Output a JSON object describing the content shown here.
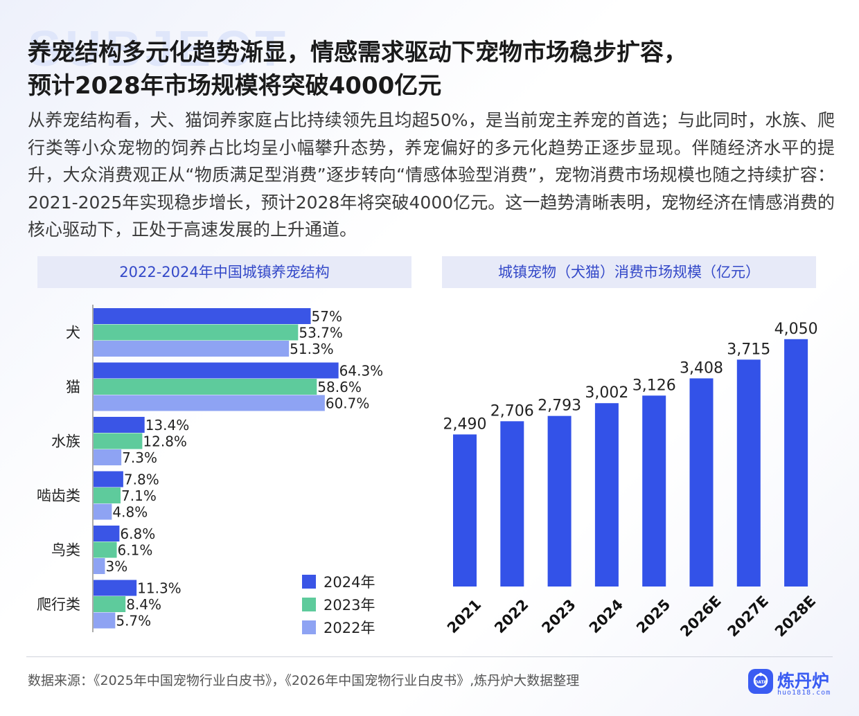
{
  "watermark": "SUBJECT",
  "title": {
    "line1": "养宠结构多元化趋势渐显，情感需求驱动下宠物市场稳步扩容，",
    "line2": "预计2028年市场规模将突破4000亿元"
  },
  "paragraph": "从养宠结构看，犬、猫饲养家庭占比持续领先且均超50%，是当前宠主养宠的首选；与此同时，水族、爬行类等小众宠物的饲养占比均呈小幅攀升态势，养宠偏好的多元化趋势正逐步显现。伴随经济水平的提升，大众消费观正从“物质满足型消费”逐步转向“情感体验型消费”，宠物消费市场规模也随之持续扩容：2021-2025年实现稳步增长，预计2028年将突破4000亿元。这一趋势清晰表明，宠物经济在情感消费的核心驱动下，正处于高速发展的上升通道。",
  "colors": {
    "c2024": "#3a55e6",
    "c2023": "#5ecb9c",
    "c2022": "#8ea3f3",
    "bar_right": "#3352e8",
    "panel_bg": "#e7eaf8",
    "panel_text": "#3348c8"
  },
  "chart_data": [
    {
      "type": "bar",
      "orientation": "horizontal",
      "title": "2022-2024年中国城镇养宠结构",
      "categories": [
        "犬",
        "猫",
        "水族",
        "啮齿类",
        "鸟类",
        "爬行类"
      ],
      "series": [
        {
          "name": "2024年",
          "values": [
            57,
            64.3,
            13.4,
            7.8,
            6.8,
            11.3
          ],
          "labels": [
            "57%",
            "64.3%",
            "13.4%",
            "7.8%",
            "6.8%",
            "11.3%"
          ]
        },
        {
          "name": "2023年",
          "values": [
            53.7,
            58.6,
            12.8,
            7.1,
            6.1,
            8.4
          ],
          "labels": [
            "53.7%",
            "58.6%",
            "12.8%",
            "7.1%",
            "6.1%",
            "8.4%"
          ]
        },
        {
          "name": "2022年",
          "values": [
            51.3,
            60.7,
            7.3,
            4.8,
            3,
            5.7
          ],
          "labels": [
            "51.3%",
            "60.7%",
            "7.3%",
            "4.8%",
            "3%",
            "5.7%"
          ]
        }
      ],
      "unit": "%",
      "legend": "bottom-right"
    },
    {
      "type": "bar",
      "title": "城镇宠物（犬猫）消费市场规模（亿元）",
      "categories": [
        "2021",
        "2022",
        "2023",
        "2024",
        "2025",
        "2026E",
        "2027E",
        "2028E"
      ],
      "values": [
        2490,
        2706,
        2793,
        3002,
        3126,
        3408,
        3715,
        4050
      ],
      "labels": [
        "2,490",
        "2,706",
        "2,793",
        "3,002",
        "3,126",
        "3,408",
        "3,715",
        "4,050"
      ]
    }
  ],
  "footer": {
    "source": "数据来源：《2025年中国宠物行业白皮书》，《2026年中国宠物行业白皮书》,炼丹炉大数据整理"
  },
  "logo": {
    "name": "炼丹炉",
    "domain": "huo1818.com",
    "badge_text": "DATA"
  }
}
